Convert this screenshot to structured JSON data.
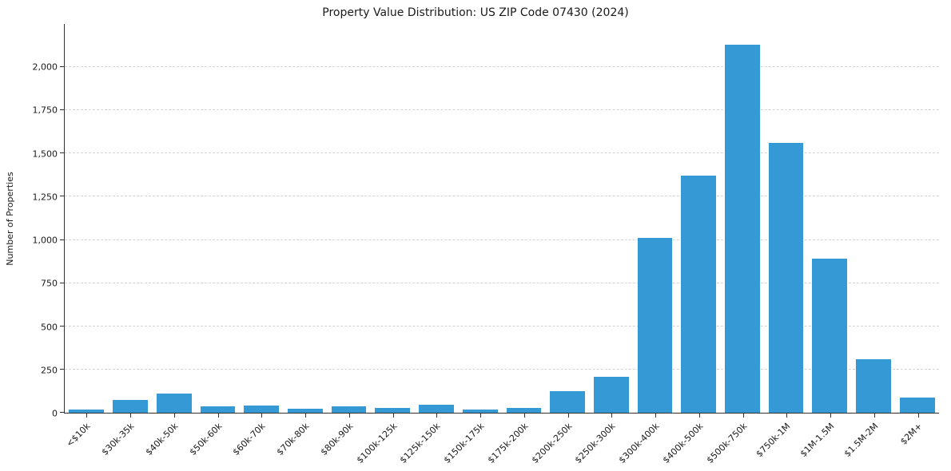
{
  "chart_data": {
    "type": "bar",
    "title": "Property Value Distribution: US ZIP Code 07430 (2024)",
    "xlabel": "",
    "ylabel": "Number of Properties",
    "categories": [
      "<$10k",
      "$30k-35k",
      "$40k-50k",
      "$50k-60k",
      "$60k-70k",
      "$70k-80k",
      "$80k-90k",
      "$100k-125k",
      "$125k-150k",
      "$150k-175k",
      "$175k-200k",
      "$200k-250k",
      "$250k-300k",
      "$300k-400k",
      "$400k-500k",
      "$500k-750k",
      "$750k-1M",
      "$1M-1.5M",
      "$1.5M-2M",
      "$2M+"
    ],
    "values": [
      20,
      75,
      110,
      35,
      40,
      25,
      35,
      30,
      45,
      20,
      30,
      125,
      210,
      1010,
      1370,
      2130,
      1560,
      890,
      310,
      90
    ],
    "ylim": [
      0,
      2250
    ],
    "yticks": [
      0,
      250,
      500,
      750,
      1000,
      1250,
      1500,
      1750,
      2000
    ],
    "ytick_labels": [
      "0",
      "250",
      "500",
      "750",
      "1,000",
      "1,250",
      "1,500",
      "1,750",
      "2,000"
    ],
    "grid": "horizontal-dashed",
    "legend": "none",
    "bar_color": "#3499d5",
    "grid_color": "#d3d3d3",
    "axis_color": "#333333",
    "text_color": "#1a1a1a",
    "background": "#ffffff"
  }
}
